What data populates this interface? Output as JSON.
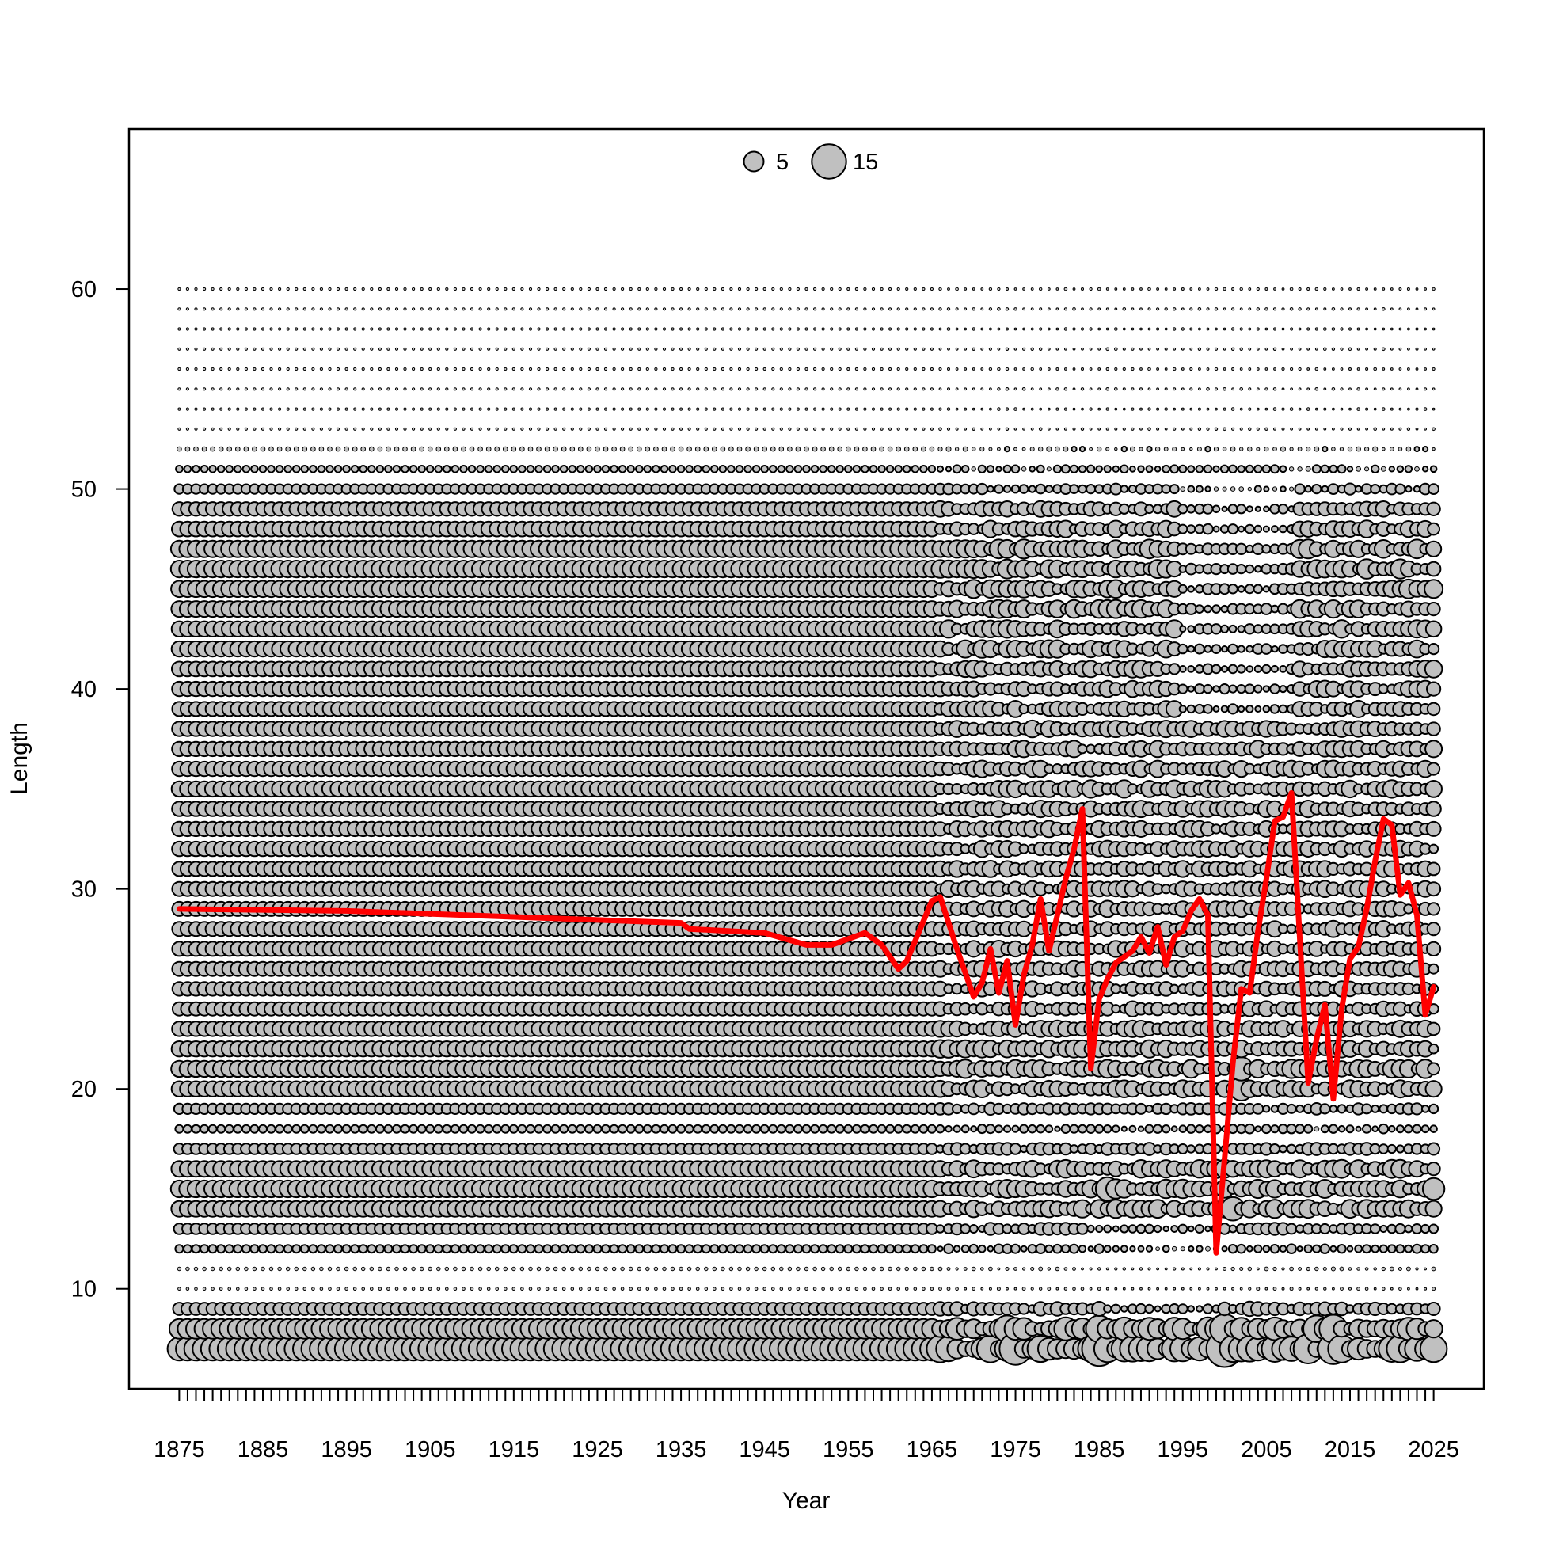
{
  "chart_data": {
    "type": "scatter",
    "title": "",
    "xlabel": "Year",
    "ylabel": "Length",
    "xlim": [
      1869,
      2031
    ],
    "ylim": [
      5,
      68
    ],
    "x_ticks": [
      1875,
      1885,
      1895,
      1905,
      1915,
      1925,
      1935,
      1945,
      1955,
      1965,
      1975,
      1985,
      1995,
      2005,
      2015,
      2025
    ],
    "y_ticks": [
      10,
      20,
      30,
      40,
      50,
      60
    ],
    "x_minor_ticks_every": 1,
    "grid": false,
    "colors": {
      "bubble_fill": "#c0c0c0",
      "bubble_stroke": "#000000",
      "line": "#ff0000",
      "frame": "#000000"
    },
    "legend": {
      "position": "top-center",
      "entries": [
        {
          "label": "5",
          "value": 5
        },
        {
          "label": "15",
          "value": 15
        }
      ]
    },
    "bubbles": {
      "description_of_encoding": "bubble area proportional to value",
      "year_range": [
        1875,
        2025
      ],
      "length_range": [
        7,
        60
      ],
      "profile_by_length": {
        "7": 7,
        "8": 5,
        "9": 2,
        "10": 0.1,
        "11": 0.15,
        "12": 0.8,
        "13": 1.5,
        "14": 3.2,
        "15": 3.6,
        "16": 3.2,
        "17": 1.5,
        "18": 0.8,
        "19": 1.4,
        "20": 3.0,
        "21": 3.3,
        "22": 3.0,
        "23": 2.7,
        "24": 2.3,
        "25": 2.4,
        "26": 2.6,
        "27": 2.6,
        "28": 2.6,
        "29": 2.6,
        "30": 2.6,
        "31": 2.6,
        "32": 2.7,
        "33": 2.7,
        "34": 2.7,
        "35": 3.0,
        "36": 2.7,
        "37": 2.7,
        "38": 2.7,
        "39": 2.6,
        "40": 2.7,
        "41": 2.8,
        "42": 3.0,
        "43": 3.0,
        "44": 3.2,
        "45": 3.4,
        "46": 3.6,
        "47": 3.5,
        "48": 2.8,
        "49": 2.4,
        "50": 1.2,
        "51": 0.6,
        "52": 0.25,
        "53": 0.08,
        "54": 0.08,
        "55": 0.08,
        "56": 0.08,
        "57": 0.08,
        "58": 0.08,
        "59": 0.08,
        "60": 0.08
      },
      "large_bubbles": [
        {
          "year": 1975,
          "length": 7,
          "value": 13
        },
        {
          "year": 1974,
          "length": 8,
          "value": 9
        },
        {
          "year": 1985,
          "length": 7,
          "value": 15
        },
        {
          "year": 1985,
          "length": 8,
          "value": 9
        },
        {
          "year": 1986,
          "length": 15,
          "value": 7
        },
        {
          "year": 2000,
          "length": 7,
          "value": 17
        },
        {
          "year": 2000,
          "length": 8,
          "value": 11
        },
        {
          "year": 2001,
          "length": 14,
          "value": 7
        },
        {
          "year": 2002,
          "length": 20,
          "value": 7
        },
        {
          "year": 2002,
          "length": 21,
          "value": 7
        },
        {
          "year": 2010,
          "length": 7,
          "value": 11
        },
        {
          "year": 2011,
          "length": 8,
          "value": 9
        },
        {
          "year": 2013,
          "length": 7,
          "value": 12
        },
        {
          "year": 2013,
          "length": 8,
          "value": 10
        },
        {
          "year": 2025,
          "length": 7,
          "value": 9
        },
        {
          "year": 2025,
          "length": 15,
          "value": 6
        }
      ]
    },
    "series": [
      {
        "kind": "line",
        "x": [
          1875,
          1895,
          1915,
          1935,
          1936,
          1945,
          1950,
          1953,
          1957,
          1959,
          1961,
          1962,
          1965,
          1966,
          1968,
          1969,
          1970,
          1971,
          1972,
          1973,
          1974,
          1975,
          1976,
          1977,
          1978,
          1979,
          1980,
          1981,
          1982,
          1983,
          1984,
          1985,
          1986,
          1987,
          1988,
          1989,
          1990,
          1991,
          1992,
          1993,
          1994,
          1995,
          1996,
          1997,
          1998,
          1999,
          2000,
          2001,
          2002,
          2003,
          2004,
          2005,
          2006,
          2007,
          2008,
          2009,
          2010,
          2011,
          2012,
          2013,
          2014,
          2015,
          2016,
          2017,
          2018,
          2019,
          2020,
          2021,
          2022,
          2023,
          2024,
          2025
        ],
        "y": [
          29.0,
          28.9,
          28.6,
          28.3,
          28.0,
          27.8,
          27.2,
          27.2,
          27.8,
          27.2,
          26.0,
          26.4,
          29.4,
          29.6,
          27.0,
          25.8,
          24.6,
          25.3,
          27.0,
          24.8,
          26.4,
          23.2,
          25.7,
          27.2,
          29.5,
          26.9,
          28.7,
          30.5,
          32.0,
          34.0,
          21.0,
          24.5,
          25.5,
          26.3,
          26.6,
          26.9,
          27.6,
          26.8,
          28.1,
          26.2,
          27.6,
          27.9,
          28.9,
          29.5,
          28.7,
          11.8,
          16.5,
          21.3,
          25.0,
          24.8,
          27.9,
          30.5,
          33.4,
          33.6,
          34.8,
          27.5,
          20.3,
          22.5,
          24.2,
          19.5,
          24.0,
          26.5,
          27.1,
          29.0,
          31.4,
          33.5,
          33.2,
          29.7,
          30.3,
          28.7,
          23.7,
          25.1
        ]
      }
    ]
  }
}
